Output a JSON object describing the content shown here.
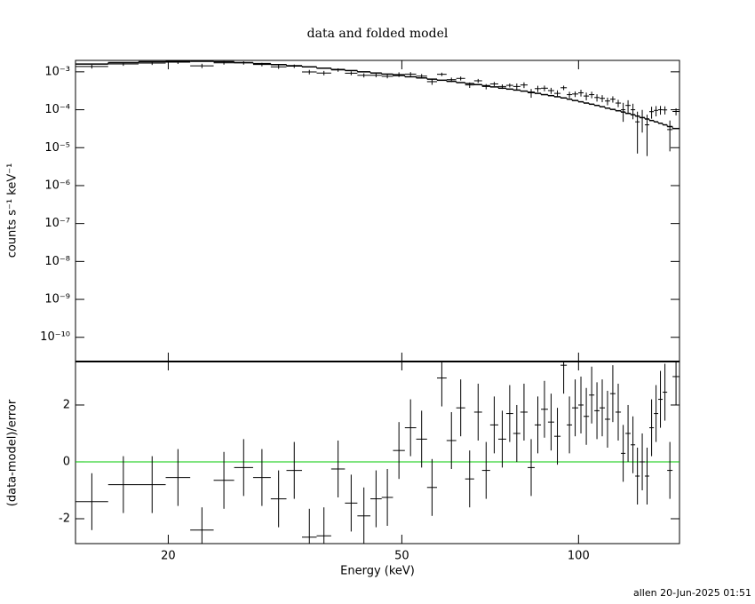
{
  "chart_data": [
    {
      "type": "errorbar",
      "title": "data and folded model",
      "ylabel": "counts s⁻¹ keV⁻¹",
      "log_y": true,
      "log_x": true,
      "color": "#000000",
      "xlim": [
        13.9,
        148.6
      ],
      "ylim": [
        2.3e-11,
        0.002
      ],
      "yticks": [
        {
          "value": 1e-10,
          "label": "10⁻¹⁰"
        },
        {
          "value": 1e-09,
          "label": "10⁻⁹"
        },
        {
          "value": 1e-08,
          "label": "10⁻⁸"
        },
        {
          "value": 1e-07,
          "label": "10⁻⁷"
        },
        {
          "value": 1e-06,
          "label": "10⁻⁶"
        },
        {
          "value": 1e-05,
          "label": "10⁻⁵"
        },
        {
          "value": 0.0001,
          "label": "10⁻⁴"
        },
        {
          "value": 0.001,
          "label": "10⁻³"
        }
      ],
      "energy_low": [
        13.9,
        15.8,
        17.8,
        19.8,
        21.8,
        23.9,
        25.9,
        27.9,
        29.9,
        31.8,
        33.8,
        35.8,
        37.9,
        40.0,
        42.0,
        44.2,
        46.2,
        48.3,
        50.6,
        52.9,
        55.2,
        57.4,
        59.6,
        61.9,
        64.1,
        66.4,
        68.5,
        70.7,
        73.0,
        75.3,
        77.4,
        79.6,
        81.9,
        84.2,
        86.3,
        88.7,
        90.9,
        93.2,
        95.5,
        97.5,
        99.9,
        102.0,
        104.2,
        106.4,
        108.6,
        110.9,
        113.2,
        115.6,
        118.1,
        120.2,
        122.7,
        124.9,
        127.1,
        129.7,
        132.0,
        134.4,
        136.7,
        139.1,
        141.6,
        144.6
      ],
      "energy_high": [
        15.8,
        17.8,
        19.8,
        21.8,
        23.9,
        25.9,
        27.9,
        29.9,
        31.8,
        33.8,
        35.8,
        37.9,
        40.0,
        42.0,
        44.2,
        46.2,
        48.3,
        50.6,
        52.9,
        55.2,
        57.4,
        59.6,
        61.9,
        64.1,
        66.4,
        68.5,
        70.7,
        73.0,
        75.3,
        77.4,
        79.6,
        81.9,
        84.2,
        86.3,
        88.7,
        90.9,
        93.2,
        95.5,
        97.5,
        99.9,
        102.0,
        104.2,
        106.4,
        108.6,
        110.9,
        113.2,
        115.6,
        118.1,
        120.2,
        122.7,
        124.9,
        127.1,
        129.7,
        132.0,
        134.4,
        136.7,
        139.1,
        141.6,
        144.6,
        148.6
      ],
      "values": [
        0.00138,
        0.00161,
        0.0017,
        0.0018,
        0.00144,
        0.00173,
        0.00172,
        0.00156,
        0.00135,
        0.00141,
        0.00099,
        0.00093,
        0.00112,
        0.00092,
        0.00081,
        0.00081,
        0.00076,
        0.00085,
        0.00087,
        0.00077,
        0.00055,
        0.00086,
        0.00062,
        0.00067,
        0.00045,
        0.00058,
        0.00041,
        0.00048,
        0.00041,
        0.00044,
        0.00041,
        0.00045,
        0.00028,
        0.00036,
        0.00037,
        0.00032,
        0.00027,
        0.00038,
        0.00025,
        0.00026,
        0.00028,
        0.00023,
        0.00025,
        0.00021,
        0.0002,
        0.00017,
        0.00019,
        0.00015,
        0.0001,
        0.00013,
        0.0001,
        4.8e-05,
        6.2e-05,
        4e-05,
        8.9e-05,
        9.6e-05,
        0.0001,
        9.9e-05,
        3e-05,
        9e-05
      ],
      "errors": [
        0.00016,
        0.000175,
        0.000185,
        0.00019,
        0.00019,
        0.000185,
        0.000175,
        0.000165,
        0.000155,
        0.000145,
        0.000135,
        0.000125,
        0.000115,
        0.000108,
        0.0001,
        9.3e-05,
        8.7e-05,
        0.00012,
        0.000111,
        0.000104,
        9.6e-05,
        9e-05,
        8.4e-05,
        7.8e-05,
        7.4e-05,
        6.9e-05,
        6.5e-05,
        6e-05,
        5.6e-05,
        5.3e-05,
        8.3e-05,
        7.8e-05,
        7.3e-05,
        6.8e-05,
        6.3e-05,
        5.9e-05,
        5.5e-05,
        5.1e-05,
        4.8e-05,
        4.4e-05,
        5.7e-05,
        5.3e-05,
        4.9e-05,
        4.6e-05,
        4.2e-05,
        3.9e-05,
        3.6e-05,
        3.3e-05,
        5.2e-05,
        4.8e-05,
        4.4e-05,
        4.1e-05,
        3.7e-05,
        3.4e-05,
        3.1e-05,
        2.9e-05,
        2.6e-05,
        2.4e-05,
        2.2e-05,
        1.9e-05
      ],
      "model": {
        "color": "#000000",
        "values": [
          0.0016,
          0.00175,
          0.00185,
          0.0019,
          0.0019,
          0.00185,
          0.00175,
          0.00165,
          0.00155,
          0.00145,
          0.00135,
          0.00125,
          0.00115,
          0.00108,
          0.001,
          0.00093,
          0.00087,
          0.0008,
          0.00074,
          0.00069,
          0.00064,
          0.0006,
          0.00056,
          0.00052,
          0.00049,
          0.00046,
          0.00043,
          0.0004,
          0.00037,
          0.00035,
          0.00033,
          0.00031,
          0.00029,
          0.00027,
          0.00025,
          0.000235,
          0.00022,
          0.000205,
          0.00019,
          0.000175,
          0.000162,
          0.00015,
          0.00014,
          0.00013,
          0.00012,
          0.00011,
          0.000102,
          9.4e-05,
          8.7e-05,
          8e-05,
          7.4e-05,
          6.8e-05,
          6.2e-05,
          5.7e-05,
          5.2e-05,
          4.8e-05,
          4.4e-05,
          4e-05,
          3.6e-05,
          3.2e-05
        ]
      }
    },
    {
      "type": "errorbar",
      "ylabel": "(data-model)/error",
      "xlabel": "Energy (keV)",
      "log_x": true,
      "color": "#000000",
      "xlim": [
        13.9,
        148.6
      ],
      "ylim": [
        -2.875,
        3.53
      ],
      "yticks": [
        -2,
        0,
        2
      ],
      "xticks": [
        20,
        50,
        100
      ],
      "energy_low": [
        13.9,
        15.8,
        17.8,
        19.8,
        21.8,
        23.9,
        25.9,
        27.9,
        29.9,
        31.8,
        33.8,
        35.8,
        37.9,
        40.0,
        42.0,
        44.2,
        46.2,
        48.3,
        50.6,
        52.9,
        55.2,
        57.4,
        59.6,
        61.9,
        64.1,
        66.4,
        68.5,
        70.7,
        73.0,
        75.3,
        77.4,
        79.6,
        81.9,
        84.2,
        86.3,
        88.7,
        90.9,
        93.2,
        95.5,
        97.5,
        99.9,
        102.0,
        104.2,
        106.4,
        108.6,
        110.9,
        113.2,
        115.6,
        118.1,
        120.2,
        122.7,
        124.9,
        127.1,
        129.7,
        132.0,
        134.4,
        136.7,
        139.1,
        141.6,
        144.6
      ],
      "energy_high": [
        15.8,
        17.8,
        19.8,
        21.8,
        23.9,
        25.9,
        27.9,
        29.9,
        31.8,
        33.8,
        35.8,
        37.9,
        40.0,
        42.0,
        44.2,
        46.2,
        48.3,
        50.6,
        52.9,
        55.2,
        57.4,
        59.6,
        61.9,
        64.1,
        66.4,
        68.5,
        70.7,
        73.0,
        75.3,
        77.4,
        79.6,
        81.9,
        84.2,
        86.3,
        88.7,
        90.9,
        93.2,
        95.5,
        97.5,
        99.9,
        102.0,
        104.2,
        106.4,
        108.6,
        110.9,
        113.2,
        115.6,
        118.1,
        120.2,
        122.7,
        124.9,
        127.1,
        129.7,
        132.0,
        134.4,
        136.7,
        139.1,
        141.6,
        144.6,
        148.6
      ],
      "values": [
        -1.4,
        -0.8,
        -0.8,
        -0.55,
        -2.4,
        -0.65,
        -0.2,
        -0.55,
        -1.3,
        -0.3,
        -2.65,
        -2.6,
        -0.25,
        -1.45,
        -1.9,
        -1.3,
        -1.25,
        0.4,
        1.2,
        0.8,
        -0.9,
        2.95,
        0.75,
        1.9,
        -0.6,
        1.75,
        -0.3,
        1.3,
        0.8,
        1.7,
        1.0,
        1.75,
        -0.2,
        1.3,
        1.85,
        1.4,
        0.9,
        3.4,
        1.3,
        1.9,
        2.0,
        1.6,
        2.35,
        1.8,
        1.9,
        1.5,
        2.4,
        1.75,
        0.3,
        1.0,
        0.6,
        -0.5,
        0.0,
        -0.5,
        1.2,
        1.7,
        2.2,
        2.45,
        -0.3,
        3.0
      ],
      "errors": [
        1,
        1,
        1,
        1,
        0.8,
        1,
        1,
        1,
        1,
        1,
        1,
        1,
        1,
        1,
        1,
        1,
        1,
        1,
        1,
        1,
        1,
        1,
        1,
        1,
        1,
        1,
        1,
        1,
        1,
        1,
        1,
        1,
        1,
        1,
        1,
        1,
        1,
        1,
        1,
        1,
        1,
        1,
        1,
        1,
        1,
        1,
        1,
        1,
        1,
        1,
        1,
        1,
        1,
        1,
        1,
        1,
        1,
        1,
        1,
        1
      ],
      "reference_line": {
        "value": 0,
        "color": "#00c800"
      }
    }
  ],
  "footer": "allen 20-Jun-2025 01:51"
}
